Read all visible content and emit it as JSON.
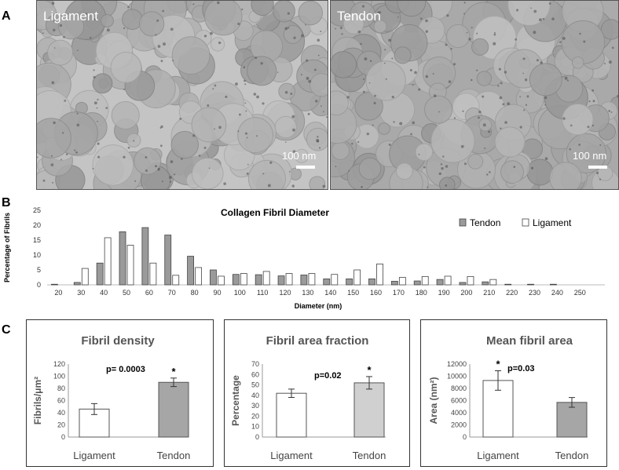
{
  "panel_labels": {
    "a": "A",
    "b": "B",
    "c": "C"
  },
  "micrographs": [
    {
      "label": "Ligament",
      "scale": "100 nm"
    },
    {
      "label": "Tendon",
      "scale": "100 nm"
    }
  ],
  "chart_data": [
    {
      "type": "bar",
      "title": "Collagen Fibril  Diameter",
      "xlabel": "Diameter (nm)",
      "ylabel": "Percentage of Fibrils",
      "ylim": [
        0,
        25
      ],
      "yticks": [
        0,
        5,
        10,
        15,
        20,
        25
      ],
      "categories": [
        "20",
        "30",
        "40",
        "50",
        "60",
        "70",
        "80",
        "90",
        "100",
        "110",
        "120",
        "130",
        "140",
        "150",
        "160",
        "170",
        "180",
        "190",
        "200",
        "210",
        "220",
        "230",
        "240",
        "250"
      ],
      "series": [
        {
          "name": "Tendon",
          "color": "#9a9a9a",
          "values": [
            0.2,
            0.8,
            7.3,
            17.8,
            19.2,
            16.7,
            9.6,
            5.0,
            3.5,
            3.4,
            3.0,
            3.3,
            2.0,
            2.0,
            2.0,
            1.2,
            1.3,
            1.8,
            0.8,
            1.0,
            0.2,
            0.2,
            0.2,
            0
          ]
        },
        {
          "name": "Ligament",
          "color": "#ffffff",
          "values": [
            0,
            5.5,
            15.8,
            13.3,
            7.3,
            3.2,
            5.8,
            2.9,
            3.8,
            4.5,
            3.8,
            3.8,
            3.5,
            5.0,
            7.0,
            2.5,
            2.8,
            2.9,
            2.8,
            1.8,
            0,
            0,
            0,
            0
          ]
        }
      ],
      "legend": "top-right",
      "grid": false
    },
    {
      "type": "bar",
      "title": "Fibril density",
      "ylabel": "Fibrils/μm²",
      "ylim": [
        0,
        120
      ],
      "yticks": [
        0,
        20,
        40,
        60,
        80,
        100,
        120
      ],
      "categories": [
        "Ligament",
        "Tendon"
      ],
      "values": [
        46,
        90
      ],
      "errors": [
        9,
        7
      ],
      "colors": [
        "#ffffff",
        "#a6a6a6"
      ],
      "significance": [
        "",
        "*"
      ],
      "annotation": "p= 0.0003"
    },
    {
      "type": "bar",
      "title": "Fibril area fraction",
      "ylabel": "Percentage",
      "ylim": [
        0,
        70
      ],
      "yticks": [
        0,
        10,
        20,
        30,
        40,
        50,
        60,
        70
      ],
      "categories": [
        "Ligament",
        "Tendon"
      ],
      "values": [
        42,
        52
      ],
      "errors": [
        4,
        6
      ],
      "colors": [
        "#ffffff",
        "#d0d0d0"
      ],
      "significance": [
        "",
        "*"
      ],
      "annotation": "p=0.02"
    },
    {
      "type": "bar",
      "title": "Mean fibril area",
      "ylabel": "Area (nm²)",
      "ylim": [
        0,
        12000
      ],
      "yticks": [
        0,
        2000,
        4000,
        6000,
        8000,
        10000,
        12000
      ],
      "categories": [
        "Ligament",
        "Tendon"
      ],
      "values": [
        9300,
        5700
      ],
      "errors": [
        1600,
        800
      ],
      "colors": [
        "#ffffff",
        "#a6a6a6"
      ],
      "significance": [
        "*",
        ""
      ],
      "annotation": "p=0.03"
    }
  ]
}
